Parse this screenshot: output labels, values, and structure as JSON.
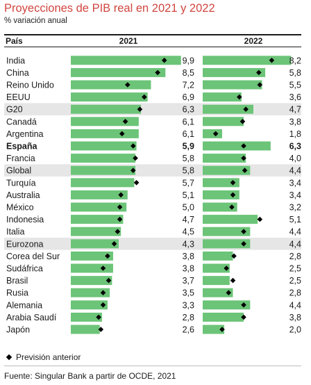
{
  "chart_data": {
    "type": "bar",
    "title": "Proyecciones de PIB real en 2021 y 2022",
    "subtitle": "% variación anual",
    "column_header_country": "País",
    "series_headers": [
      "2021",
      "2022"
    ],
    "categories": [
      "India",
      "China",
      "Reino Unido",
      "EEUU",
      "G20",
      "Canadá",
      "Argentina",
      "España",
      "Francia",
      "Global",
      "Turquía",
      "Australia",
      "México",
      "Indonesia",
      "Italia",
      "Eurozona",
      "Corea del Sur",
      "Sudáfrica",
      "Brasil",
      "Rusia",
      "Alemania",
      "Arabia Saudí",
      "Japón"
    ],
    "value_labels_2021": [
      "9,9",
      "8,5",
      "7,2",
      "6,9",
      "6,3",
      "6,1",
      "6,1",
      "5,9",
      "5,8",
      "5,8",
      "5,7",
      "5,1",
      "5,0",
      "4,7",
      "4,5",
      "4,3",
      "3,8",
      "3,8",
      "3,7",
      "3,5",
      "3,3",
      "2,8",
      "2,6"
    ],
    "value_labels_2022": [
      "8,2",
      "5,8",
      "5,5",
      "3,6",
      "4,7",
      "3,8",
      "1,8",
      "6,3",
      "4,0",
      "4,4",
      "3,4",
      "3,4",
      "3,2",
      "5,1",
      "4,4",
      "4,4",
      "2,8",
      "2,5",
      "2,5",
      "2,8",
      "4,4",
      "3,8",
      "2,0"
    ],
    "series": [
      {
        "name": "2021",
        "values": [
          9.9,
          8.5,
          7.2,
          6.9,
          6.3,
          6.1,
          6.1,
          5.9,
          5.8,
          5.8,
          5.7,
          5.1,
          5.0,
          4.7,
          4.5,
          4.3,
          3.8,
          3.8,
          3.7,
          3.5,
          3.3,
          2.8,
          2.6
        ]
      },
      {
        "name": "2022",
        "values": [
          8.2,
          5.8,
          5.5,
          3.6,
          4.7,
          3.8,
          1.8,
          6.3,
          4.0,
          4.4,
          3.4,
          3.4,
          3.2,
          5.1,
          4.4,
          4.4,
          2.8,
          2.5,
          2.5,
          2.8,
          4.4,
          3.8,
          2.0
        ]
      },
      {
        "name": "Previsión anterior",
        "values_2021": [
          8.4,
          7.8,
          5.1,
          6.6,
          6.2,
          4.9,
          4.6,
          5.6,
          5.8,
          5.6,
          5.9,
          4.5,
          4.4,
          4.4,
          4.2,
          3.9,
          3.3,
          2.9,
          3.4,
          2.9,
          2.9,
          2.5,
          2.7
        ],
        "values_2022": [
          6.4,
          5.2,
          5.3,
          3.4,
          4.0,
          3.7,
          1.2,
          3.8,
          3.8,
          3.9,
          2.8,
          2.8,
          2.7,
          5.3,
          3.8,
          3.8,
          2.9,
          2.2,
          2.8,
          2.4,
          3.8,
          3.8,
          1.8
        ]
      }
    ],
    "highlighted_categories": [
      "G20",
      "Global",
      "Eurozona"
    ],
    "bold_categories": [
      "España"
    ],
    "legend_label": "Previsión anterior",
    "source": "Fuente: Singular Bank a partir de OCDE, 2021",
    "colors": {
      "bar": "#6cc478",
      "marker": "#000000",
      "highlight_row": "#e6e6e6",
      "title": "#d0453f"
    },
    "xlim_2021": [
      0,
      10.6
    ],
    "xlim_2022": [
      0,
      9.4
    ],
    "grid": false,
    "legend_position": "bottom-left"
  }
}
